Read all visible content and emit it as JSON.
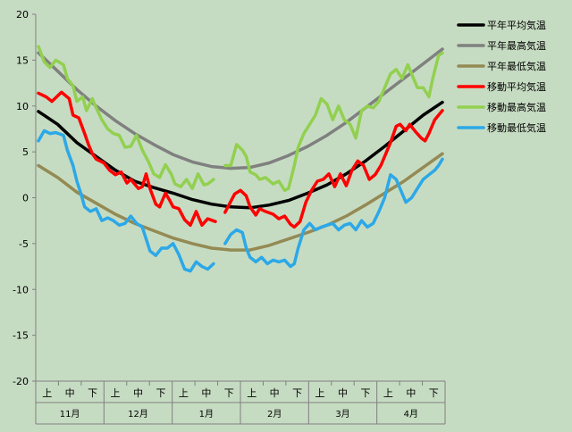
{
  "chart_data": {
    "type": "line",
    "ylim": [
      -20,
      20
    ],
    "yticks": [
      "20",
      "15",
      "10",
      "5",
      "0",
      "-5",
      "-10",
      "-15",
      "-20"
    ],
    "grid": false,
    "legend_position": "right",
    "colors": {
      "background": "#c6dcc2",
      "axis": "#808080"
    },
    "x_sub_labels": [
      "上",
      "中",
      "下"
    ],
    "months": [
      "11月",
      "12月",
      "1月",
      "2月",
      "3月",
      "4月"
    ],
    "series": [
      {
        "name": "平年平均気温",
        "color": "#000000",
        "values": [
          [
            0,
            9.4
          ],
          [
            10,
            8.0
          ],
          [
            20,
            6.0
          ],
          [
            30,
            4.5
          ],
          [
            40,
            3.0
          ],
          [
            50,
            1.8
          ],
          [
            60,
            1.1
          ],
          [
            70,
            0.5
          ],
          [
            80,
            -0.2
          ],
          [
            90,
            -0.7
          ],
          [
            100,
            -1.0
          ],
          [
            110,
            -1.1
          ],
          [
            120,
            -0.8
          ],
          [
            130,
            -0.3
          ],
          [
            140,
            0.5
          ],
          [
            150,
            1.4
          ],
          [
            160,
            2.6
          ],
          [
            170,
            4.0
          ],
          [
            180,
            5.6
          ],
          [
            190,
            7.3
          ],
          [
            200,
            9.0
          ],
          [
            210,
            10.4
          ]
        ]
      },
      {
        "name": "平年最高気温",
        "color": "#808080",
        "values": [
          [
            0,
            15.8
          ],
          [
            10,
            13.8
          ],
          [
            20,
            11.8
          ],
          [
            30,
            10.0
          ],
          [
            40,
            8.4
          ],
          [
            50,
            7.0
          ],
          [
            60,
            5.8
          ],
          [
            70,
            4.7
          ],
          [
            80,
            3.9
          ],
          [
            90,
            3.4
          ],
          [
            100,
            3.2
          ],
          [
            110,
            3.3
          ],
          [
            120,
            3.8
          ],
          [
            130,
            4.6
          ],
          [
            140,
            5.6
          ],
          [
            150,
            6.8
          ],
          [
            160,
            8.2
          ],
          [
            170,
            9.8
          ],
          [
            180,
            11.4
          ],
          [
            190,
            13.0
          ],
          [
            200,
            14.6
          ],
          [
            210,
            16.2
          ]
        ]
      },
      {
        "name": "平年最低気温",
        "color": "#948a54",
        "values": [
          [
            0,
            3.5
          ],
          [
            10,
            2.2
          ],
          [
            20,
            0.6
          ],
          [
            30,
            -0.6
          ],
          [
            40,
            -1.8
          ],
          [
            50,
            -2.8
          ],
          [
            60,
            -3.6
          ],
          [
            70,
            -4.4
          ],
          [
            80,
            -5.0
          ],
          [
            90,
            -5.5
          ],
          [
            100,
            -5.7
          ],
          [
            110,
            -5.7
          ],
          [
            120,
            -5.2
          ],
          [
            130,
            -4.5
          ],
          [
            140,
            -3.8
          ],
          [
            150,
            -3.0
          ],
          [
            160,
            -2.0
          ],
          [
            170,
            -0.8
          ],
          [
            180,
            0.5
          ],
          [
            190,
            1.8
          ],
          [
            200,
            3.3
          ],
          [
            210,
            4.8
          ]
        ]
      },
      {
        "name": "移動平均気温",
        "color": "#ff0000",
        "segments": [
          [
            [
              0,
              11.4
            ],
            [
              4,
              11.0
            ],
            [
              7,
              10.5
            ],
            [
              12,
              11.5
            ],
            [
              16,
              10.8
            ],
            [
              18,
              9.0
            ],
            [
              21,
              8.7
            ],
            [
              24,
              7.0
            ],
            [
              26,
              5.8
            ],
            [
              28,
              4.8
            ],
            [
              30,
              4.2
            ],
            [
              34,
              3.8
            ],
            [
              37,
              3.0
            ],
            [
              40,
              2.5
            ],
            [
              43,
              2.8
            ],
            [
              46,
              1.6
            ],
            [
              48,
              2.0
            ],
            [
              52,
              1.0
            ],
            [
              54,
              1.2
            ],
            [
              56,
              2.6
            ],
            [
              58,
              1.0
            ],
            [
              61,
              -0.7
            ],
            [
              63,
              -1.0
            ],
            [
              66,
              0.5
            ],
            [
              68,
              -0.2
            ],
            [
              70,
              -1.0
            ],
            [
              73,
              -1.2
            ],
            [
              76,
              -2.4
            ],
            [
              79,
              -3.0
            ],
            [
              82,
              -1.5
            ],
            [
              85,
              -3.0
            ],
            [
              88,
              -2.3
            ],
            [
              92,
              -2.6
            ]
          ],
          [
            [
              97,
              -1.6
            ],
            [
              99,
              -0.8
            ],
            [
              102,
              0.4
            ],
            [
              105,
              0.8
            ],
            [
              108,
              0.2
            ],
            [
              110,
              -1.0
            ],
            [
              113,
              -1.9
            ],
            [
              115,
              -1.2
            ],
            [
              118,
              -1.5
            ],
            [
              122,
              -1.8
            ],
            [
              125,
              -2.3
            ],
            [
              128,
              -2.0
            ],
            [
              131,
              -2.9
            ],
            [
              133,
              -3.2
            ],
            [
              136,
              -2.6
            ],
            [
              139,
              -0.5
            ],
            [
              142,
              0.8
            ],
            [
              145,
              1.8
            ],
            [
              148,
              2.0
            ],
            [
              151,
              2.6
            ],
            [
              154,
              1.2
            ],
            [
              157,
              2.6
            ],
            [
              160,
              1.3
            ],
            [
              163,
              3.0
            ],
            [
              166,
              4.0
            ],
            [
              169,
              3.5
            ],
            [
              172,
              2.0
            ],
            [
              175,
              2.5
            ],
            [
              178,
              3.5
            ],
            [
              181,
              5.0
            ],
            [
              183,
              6.0
            ],
            [
              186,
              7.8
            ],
            [
              188,
              8.0
            ],
            [
              191,
              7.3
            ],
            [
              193,
              8.0
            ],
            [
              196,
              7.2
            ],
            [
              199,
              6.5
            ],
            [
              201,
              6.2
            ],
            [
              203,
              7.0
            ],
            [
              206,
              8.5
            ],
            [
              208,
              9.0
            ],
            [
              210,
              9.5
            ]
          ]
        ]
      },
      {
        "name": "移動最高気温",
        "color": "#92d050",
        "segments": [
          [
            [
              0,
              16.5
            ],
            [
              3,
              14.8
            ],
            [
              6,
              14.2
            ],
            [
              9,
              15.0
            ],
            [
              13,
              14.5
            ],
            [
              15,
              13.0
            ],
            [
              18,
              12.2
            ],
            [
              20,
              10.5
            ],
            [
              23,
              11.0
            ],
            [
              25,
              9.5
            ],
            [
              28,
              10.8
            ],
            [
              30,
              9.8
            ],
            [
              33,
              8.5
            ],
            [
              36,
              7.5
            ],
            [
              39,
              7.0
            ],
            [
              42,
              6.8
            ],
            [
              45,
              5.5
            ],
            [
              48,
              5.6
            ],
            [
              51,
              6.8
            ],
            [
              54,
              5.2
            ],
            [
              57,
              4.0
            ],
            [
              60,
              2.6
            ],
            [
              63,
              2.2
            ],
            [
              66,
              3.6
            ],
            [
              69,
              2.6
            ],
            [
              71,
              1.5
            ],
            [
              74,
              1.2
            ],
            [
              77,
              2.0
            ],
            [
              80,
              1.0
            ],
            [
              83,
              2.6
            ],
            [
              86,
              1.4
            ],
            [
              88,
              1.5
            ],
            [
              91,
              2.0
            ]
          ],
          [
            [
              97,
              3.5
            ],
            [
              100,
              3.5
            ],
            [
              103,
              5.8
            ],
            [
              106,
              5.2
            ],
            [
              108,
              4.5
            ],
            [
              110,
              2.8
            ],
            [
              113,
              2.5
            ],
            [
              115,
              2.0
            ],
            [
              118,
              2.2
            ],
            [
              122,
              1.5
            ],
            [
              125,
              1.8
            ],
            [
              128,
              0.8
            ],
            [
              130,
              1.0
            ],
            [
              133,
              3.5
            ],
            [
              135,
              5.5
            ],
            [
              138,
              7.0
            ],
            [
              141,
              8.0
            ],
            [
              144,
              9.0
            ],
            [
              147,
              10.8
            ],
            [
              150,
              10.2
            ],
            [
              153,
              8.5
            ],
            [
              156,
              10.0
            ],
            [
              159,
              8.5
            ],
            [
              162,
              8.0
            ],
            [
              165,
              6.5
            ],
            [
              168,
              9.5
            ],
            [
              171,
              10.0
            ],
            [
              174,
              9.8
            ],
            [
              177,
              10.5
            ],
            [
              180,
              12.0
            ],
            [
              183,
              13.5
            ],
            [
              186,
              14.0
            ],
            [
              189,
              13.0
            ],
            [
              192,
              14.5
            ],
            [
              195,
              13.0
            ],
            [
              197,
              12.0
            ],
            [
              200,
              12.0
            ],
            [
              203,
              11.0
            ],
            [
              205,
              13.0
            ],
            [
              208,
              15.5
            ],
            [
              210,
              15.8
            ]
          ]
        ]
      },
      {
        "name": "移動最低気温",
        "color": "#2ca8e8",
        "segments": [
          [
            [
              0,
              6.2
            ],
            [
              3,
              7.3
            ],
            [
              6,
              7.0
            ],
            [
              9,
              7.1
            ],
            [
              13,
              6.8
            ],
            [
              15,
              5.2
            ],
            [
              18,
              3.5
            ],
            [
              20,
              1.8
            ],
            [
              22,
              0.5
            ],
            [
              24,
              -1.0
            ],
            [
              27,
              -1.5
            ],
            [
              30,
              -1.2
            ],
            [
              33,
              -2.5
            ],
            [
              36,
              -2.2
            ],
            [
              39,
              -2.5
            ],
            [
              42,
              -3.0
            ],
            [
              45,
              -2.8
            ],
            [
              48,
              -2.0
            ],
            [
              51,
              -2.8
            ],
            [
              54,
              -3.2
            ],
            [
              56,
              -4.5
            ],
            [
              58,
              -5.8
            ],
            [
              61,
              -6.3
            ],
            [
              64,
              -5.5
            ],
            [
              67,
              -5.5
            ],
            [
              70,
              -5.0
            ],
            [
              73,
              -6.2
            ],
            [
              76,
              -7.8
            ],
            [
              79,
              -8.0
            ],
            [
              82,
              -7.0
            ],
            [
              85,
              -7.5
            ],
            [
              88,
              -7.8
            ],
            [
              91,
              -7.2
            ]
          ],
          [
            [
              97,
              -5.0
            ],
            [
              100,
              -4.0
            ],
            [
              103,
              -3.5
            ],
            [
              106,
              -3.8
            ],
            [
              108,
              -5.5
            ],
            [
              110,
              -6.5
            ],
            [
              113,
              -7.0
            ],
            [
              116,
              -6.5
            ],
            [
              119,
              -7.2
            ],
            [
              122,
              -6.8
            ],
            [
              125,
              -7.0
            ],
            [
              128,
              -6.8
            ],
            [
              131,
              -7.5
            ],
            [
              133,
              -7.2
            ],
            [
              135,
              -5.5
            ],
            [
              138,
              -3.5
            ],
            [
              141,
              -2.8
            ],
            [
              144,
              -3.5
            ],
            [
              147,
              -3.2
            ],
            [
              150,
              -3.0
            ],
            [
              153,
              -2.8
            ],
            [
              156,
              -3.5
            ],
            [
              159,
              -3.0
            ],
            [
              162,
              -2.8
            ],
            [
              165,
              -3.5
            ],
            [
              168,
              -2.5
            ],
            [
              171,
              -3.2
            ],
            [
              174,
              -2.8
            ],
            [
              177,
              -1.5
            ],
            [
              180,
              0.0
            ],
            [
              183,
              2.5
            ],
            [
              186,
              2.0
            ],
            [
              189,
              0.5
            ],
            [
              191,
              -0.5
            ],
            [
              194,
              0.0
            ],
            [
              197,
              1.0
            ],
            [
              200,
              2.0
            ],
            [
              203,
              2.5
            ],
            [
              206,
              3.0
            ],
            [
              208,
              3.5
            ],
            [
              210,
              4.2
            ]
          ]
        ]
      }
    ]
  }
}
